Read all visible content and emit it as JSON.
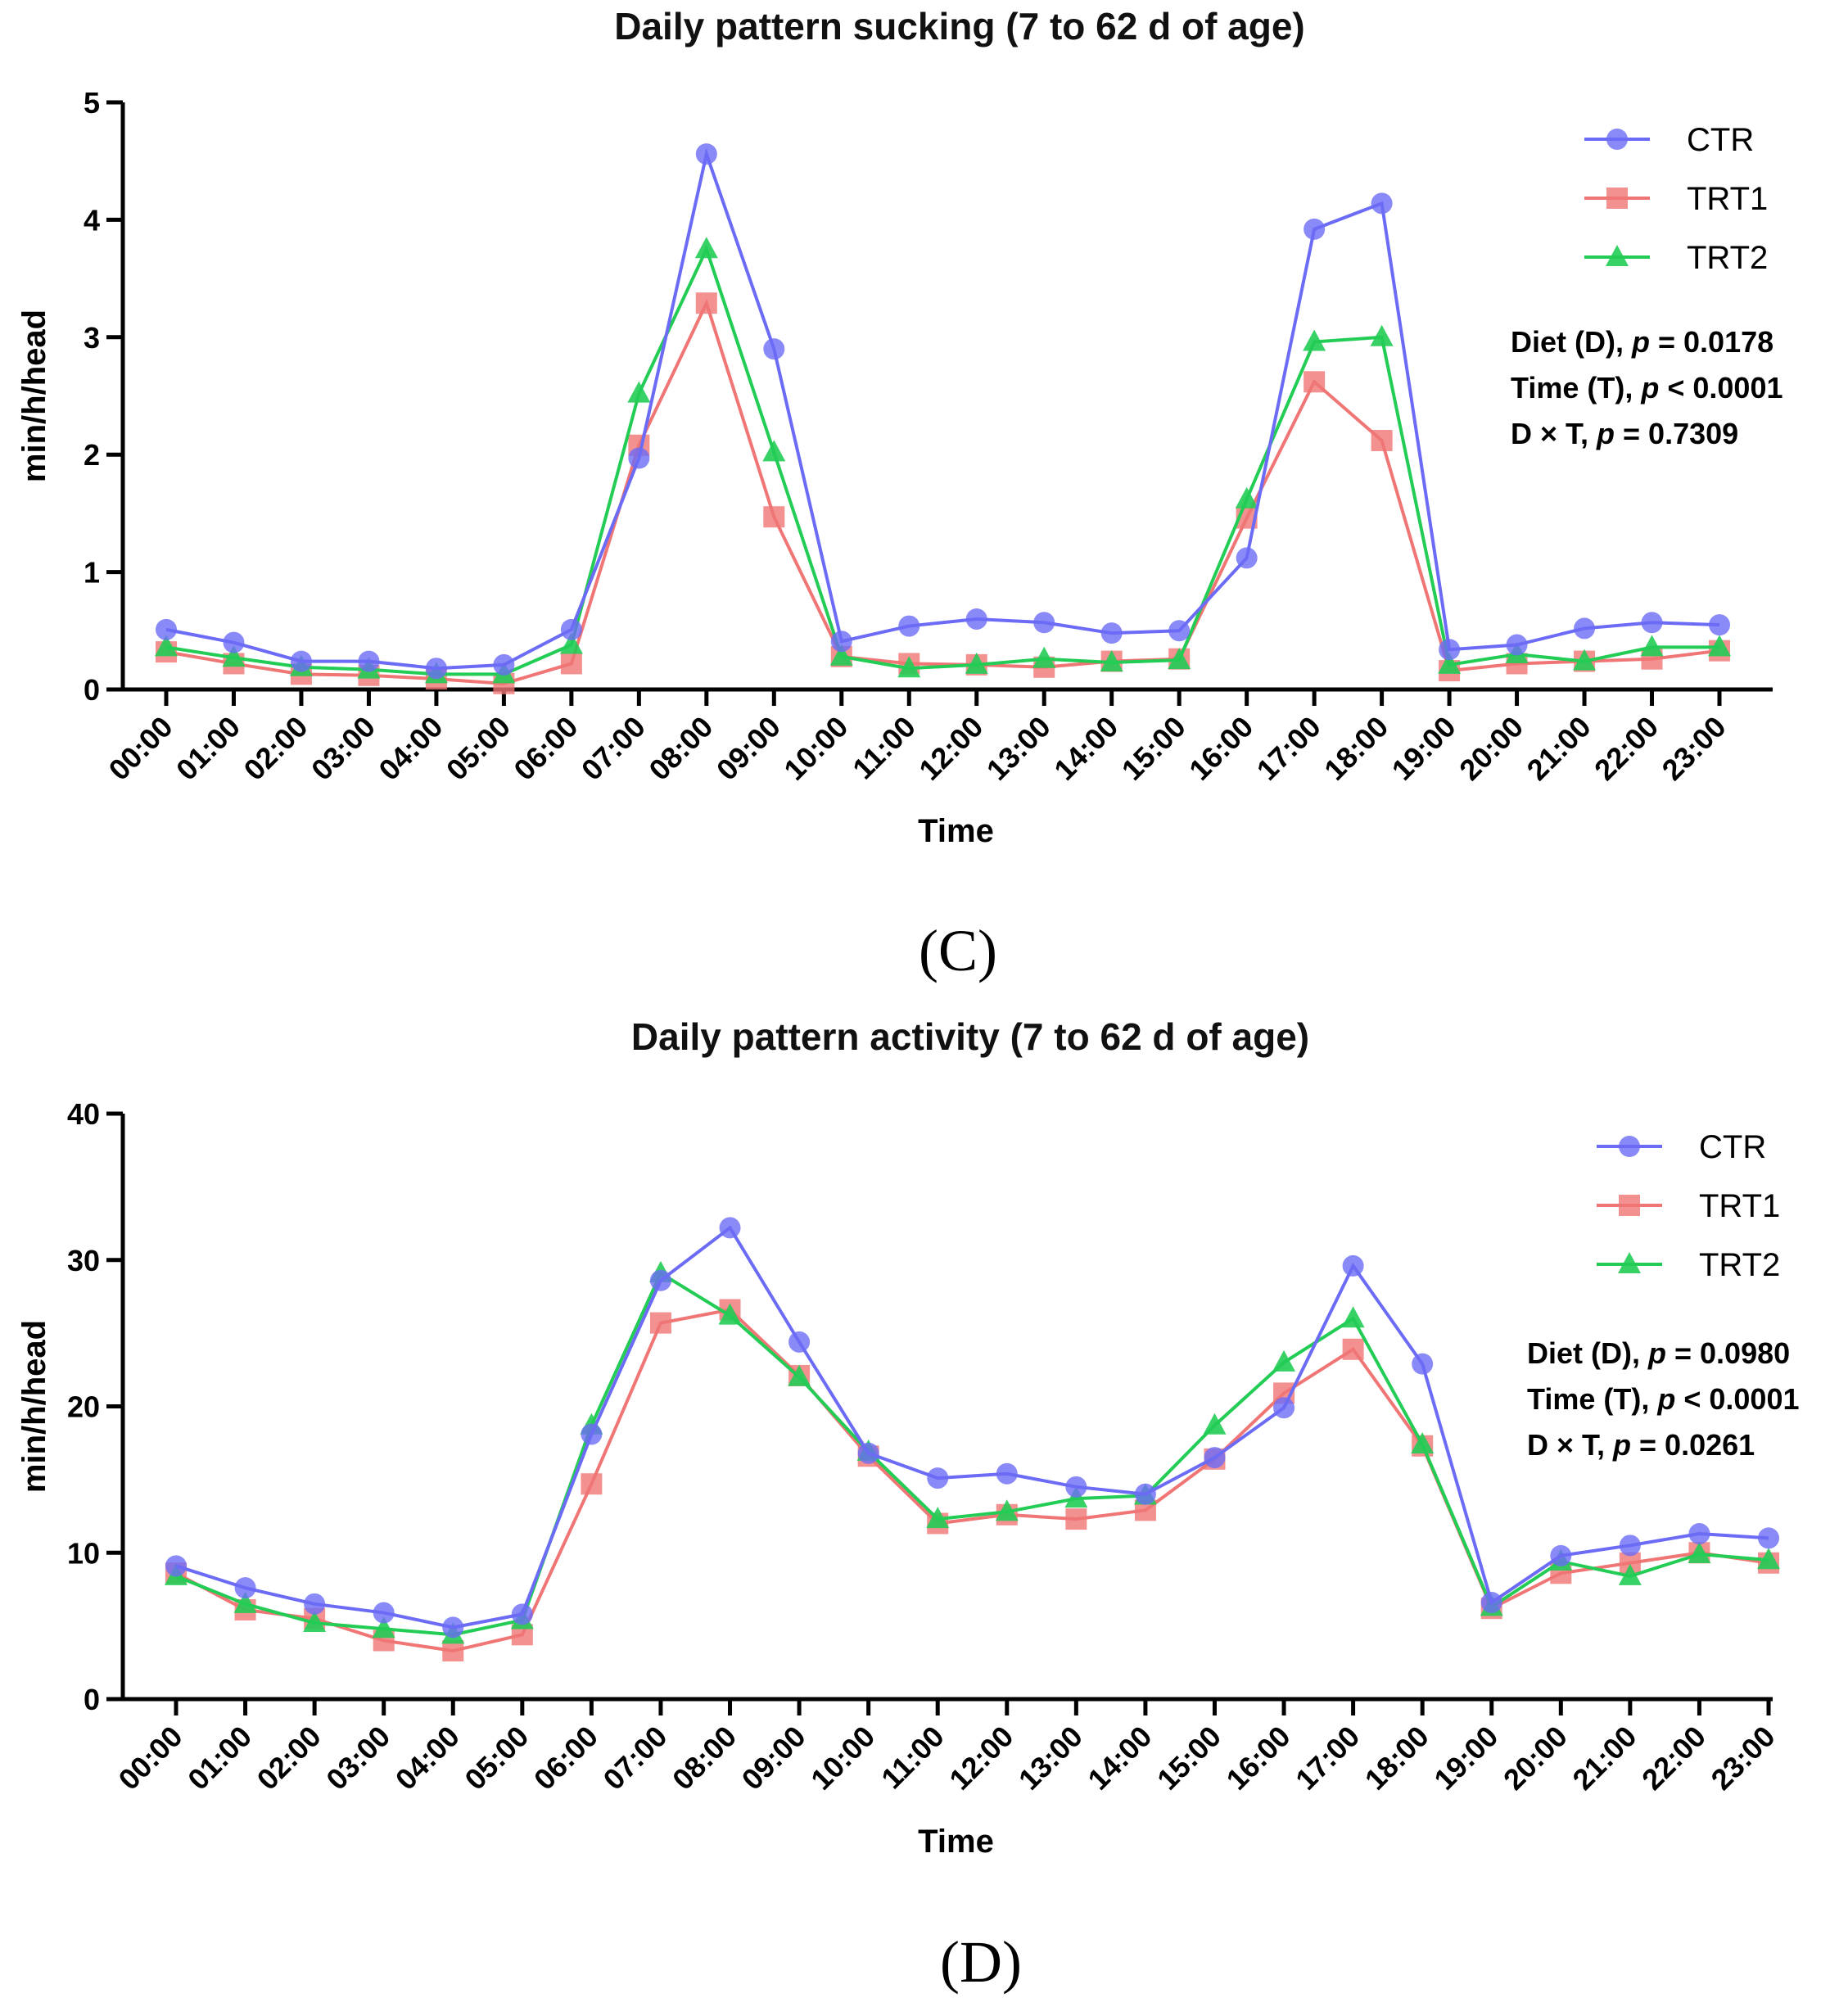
{
  "panel_labels": [
    "(C)",
    "(D)"
  ],
  "legend_series": [
    "CTR",
    "TRT1",
    "TRT2"
  ],
  "series_colors": {
    "CTR": "#6b6bf5",
    "TRT1": "#f07575",
    "TRT2": "#22cc55"
  },
  "chart_data": [
    {
      "type": "line",
      "title": "Daily pattern sucking (7 to 62 d of age)",
      "xlabel": "Time",
      "ylabel": "min/h/head",
      "ylim": [
        0,
        5
      ],
      "yticks": [
        0,
        1,
        2,
        3,
        4,
        5
      ],
      "categories": [
        "00:00",
        "01:00",
        "02:00",
        "03:00",
        "04:00",
        "05:00",
        "06:00",
        "07:00",
        "08:00",
        "09:00",
        "10:00",
        "11:00",
        "12:00",
        "13:00",
        "14:00",
        "15:00",
        "16:00",
        "17:00",
        "18:00",
        "19:00",
        "20:00",
        "21:00",
        "22:00",
        "23:00"
      ],
      "series": [
        {
          "name": "CTR",
          "values": [
            0.51,
            0.4,
            0.24,
            0.24,
            0.18,
            0.21,
            0.51,
            1.97,
            4.56,
            2.9,
            0.41,
            0.54,
            0.6,
            0.57,
            0.48,
            0.5,
            1.12,
            3.92,
            4.14,
            0.34,
            0.38,
            0.52,
            0.57,
            0.55
          ]
        },
        {
          "name": "TRT1",
          "values": [
            0.32,
            0.22,
            0.13,
            0.12,
            0.09,
            0.05,
            0.22,
            2.08,
            3.29,
            1.47,
            0.28,
            0.22,
            0.21,
            0.19,
            0.24,
            0.26,
            1.46,
            2.62,
            2.12,
            0.16,
            0.22,
            0.24,
            0.26,
            0.33
          ]
        },
        {
          "name": "TRT2",
          "values": [
            0.36,
            0.27,
            0.19,
            0.17,
            0.13,
            0.13,
            0.38,
            2.52,
            3.75,
            2.02,
            0.28,
            0.18,
            0.21,
            0.26,
            0.23,
            0.25,
            1.62,
            2.96,
            3.0,
            0.21,
            0.3,
            0.24,
            0.36,
            0.36
          ]
        }
      ],
      "legend_position": "top-right",
      "annotations": [
        {
          "label": "Diet (D), ",
          "p": "p",
          "rest": " = 0.0178"
        },
        {
          "label": "Time (T), ",
          "p": "p",
          "rest": " < 0.0001"
        },
        {
          "label": "D × T, ",
          "p": "p",
          "rest": " = 0.7309"
        }
      ]
    },
    {
      "type": "line",
      "title": "Daily pattern activity (7 to 62 d of age)",
      "xlabel": "Time",
      "ylabel": "min/h/head",
      "ylim": [
        0,
        40
      ],
      "yticks": [
        0,
        10,
        20,
        30,
        40
      ],
      "categories": [
        "00:00",
        "01:00",
        "02:00",
        "03:00",
        "04:00",
        "05:00",
        "06:00",
        "07:00",
        "08:00",
        "09:00",
        "10:00",
        "11:00",
        "12:00",
        "13:00",
        "14:00",
        "15:00",
        "16:00",
        "17:00",
        "18:00",
        "19:00",
        "20:00",
        "21:00",
        "22:00",
        "23:00"
      ],
      "series": [
        {
          "name": "CTR",
          "values": [
            9.1,
            7.6,
            6.5,
            5.9,
            4.9,
            5.8,
            18.1,
            28.6,
            32.2,
            24.4,
            16.8,
            15.1,
            15.4,
            14.5,
            14.0,
            16.5,
            19.9,
            29.6,
            22.9,
            6.6,
            9.8,
            10.5,
            11.3,
            11.0
          ]
        },
        {
          "name": "TRT1",
          "values": [
            8.6,
            6.1,
            5.5,
            4.0,
            3.3,
            4.4,
            14.7,
            25.7,
            26.6,
            22.1,
            16.6,
            12.0,
            12.6,
            12.3,
            12.9,
            16.4,
            20.9,
            23.9,
            17.3,
            6.2,
            8.6,
            9.3,
            10.0,
            9.3
          ]
        },
        {
          "name": "TRT2",
          "values": [
            8.4,
            6.5,
            5.2,
            4.8,
            4.4,
            5.4,
            18.7,
            29.1,
            26.2,
            22.0,
            16.9,
            12.3,
            12.8,
            13.7,
            13.9,
            18.7,
            23.0,
            26.0,
            17.4,
            6.3,
            9.4,
            8.4,
            9.9,
            9.5
          ]
        }
      ],
      "legend_position": "top-right",
      "annotations": [
        {
          "label": "Diet (D), ",
          "p": "p",
          "rest": " = 0.0980"
        },
        {
          "label": "Time (T), ",
          "p": "p",
          "rest": " < 0.0001"
        },
        {
          "label": "D × T, ",
          "p": "p",
          "rest": " = 0.0261"
        }
      ]
    }
  ]
}
